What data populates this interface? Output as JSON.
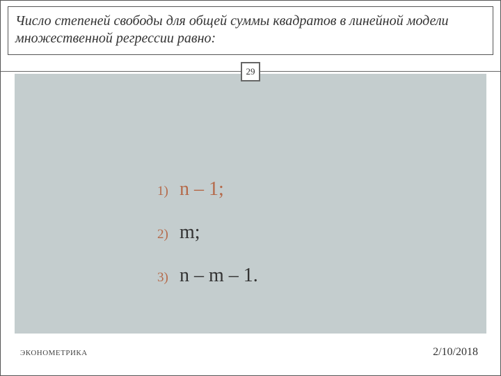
{
  "header": {
    "title": "Число степеней свободы для общей суммы квадратов в линейной модели множественной регрессии равно:"
  },
  "page_number": "29",
  "options": [
    {
      "num": "1)",
      "text": "n – 1;",
      "highlight": true
    },
    {
      "num": "2)",
      "text": "m;",
      "highlight": false
    },
    {
      "num": "3)",
      "text": "n – m – 1.",
      "highlight": false
    }
  ],
  "footer": {
    "left": "ЭКОНОМЕТРИКА",
    "right": "2/10/2018"
  },
  "colors": {
    "body_bg": "#c4cdce",
    "accent": "#b56a4a",
    "border": "#555555",
    "text": "#333333"
  }
}
